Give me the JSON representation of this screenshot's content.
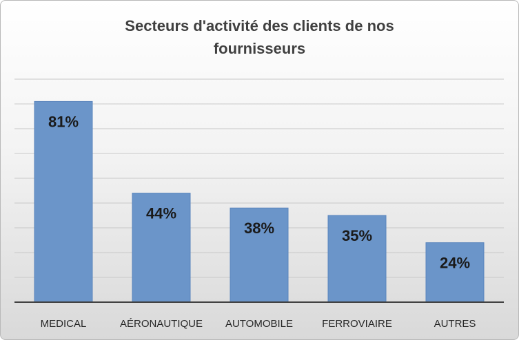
{
  "chart_data": {
    "type": "bar",
    "title_lines": [
      "Secteurs d'activité des clients de nos",
      "fournisseurs"
    ],
    "categories": [
      "MEDICAL",
      "AÉRONAUTIQUE",
      "AUTOMOBILE",
      "FERROVIAIRE",
      "AUTRES"
    ],
    "values": [
      81,
      44,
      38,
      35,
      24
    ],
    "value_labels": [
      "81%",
      "44%",
      "38%",
      "35%",
      "24%"
    ],
    "ylim": [
      0,
      90
    ],
    "grid": true,
    "legend": "none",
    "bar_color": "#6b95c9"
  }
}
